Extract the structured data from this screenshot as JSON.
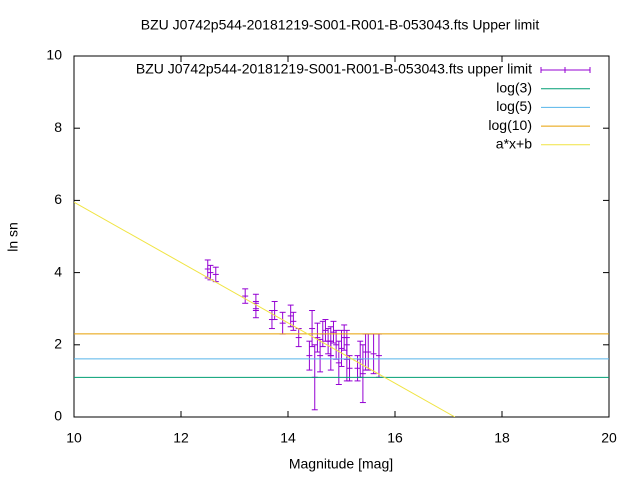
{
  "chart_data": {
    "type": "line",
    "title": "BZU J0742p544-20181219-S001-R001-B-053043.fts Upper limit",
    "xlabel": "Magnitude [mag]",
    "ylabel": "ln sn",
    "xlim": [
      10,
      20
    ],
    "xticks": [
      10,
      12,
      14,
      16,
      18,
      20
    ],
    "ylim": [
      0,
      10
    ],
    "yticks": [
      0,
      2,
      4,
      6,
      8,
      10
    ],
    "legend": "top-right",
    "series": [
      {
        "name": "BZU J0742p544-20181219-S001-R001-B-053043.fts upper limit",
        "style": "errorbars",
        "color": "#9400d3",
        "x": [
          12.5,
          12.55,
          12.65,
          13.2,
          13.4,
          13.4,
          13.7,
          13.75,
          13.9,
          14.05,
          14.1,
          14.2,
          14.4,
          14.45,
          14.5,
          14.55,
          14.6,
          14.65,
          14.7,
          14.75,
          14.8,
          14.8,
          14.85,
          14.9,
          14.95,
          15.0,
          15.05,
          15.1,
          15.1,
          15.15,
          15.3,
          15.35,
          15.4,
          15.45,
          15.5,
          15.6,
          15.7
        ],
        "values": [
          4.1,
          4.0,
          3.95,
          3.35,
          3.2,
          2.95,
          2.7,
          2.95,
          2.6,
          2.8,
          2.65,
          2.2,
          1.7,
          2.45,
          1.1,
          2.2,
          1.7,
          2.3,
          2.4,
          2.1,
          1.7,
          2.1,
          2.35,
          2.0,
          1.5,
          1.9,
          2.2,
          1.6,
          2.0,
          1.35,
          1.35,
          1.6,
          1.2,
          1.8,
          1.8,
          1.75,
          1.7
        ],
        "errors": [
          0.25,
          0.2,
          0.2,
          0.2,
          0.2,
          0.2,
          0.25,
          0.25,
          0.3,
          0.3,
          0.25,
          0.25,
          0.4,
          0.5,
          0.9,
          0.4,
          0.45,
          0.35,
          0.3,
          0.35,
          0.4,
          0.4,
          0.3,
          0.4,
          0.6,
          0.5,
          0.35,
          0.6,
          0.4,
          0.35,
          0.35,
          0.5,
          0.8,
          0.5,
          0.5,
          0.55,
          0.6
        ]
      },
      {
        "name": "log(3)",
        "style": "line",
        "color": "#009e73",
        "x": [
          10,
          20
        ],
        "values": [
          1.0986,
          1.0986
        ]
      },
      {
        "name": "log(5)",
        "style": "line",
        "color": "#56b4e9",
        "x": [
          10,
          20
        ],
        "values": [
          1.6094,
          1.6094
        ]
      },
      {
        "name": "log(10)",
        "style": "line",
        "color": "#e69f00",
        "x": [
          10,
          20
        ],
        "values": [
          2.3026,
          2.3026
        ]
      },
      {
        "name": "a*x+b",
        "style": "line",
        "color": "#f0e442",
        "x": [
          10,
          17.12
        ],
        "values": [
          5.95,
          0
        ]
      }
    ]
  }
}
